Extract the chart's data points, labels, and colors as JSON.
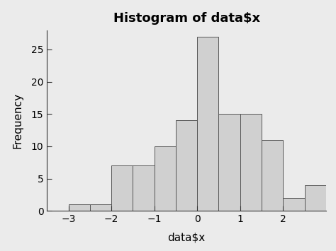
{
  "title": "Histogram of data$x",
  "xlabel": "data$x",
  "ylabel": "Frequency",
  "background_color": "#ebebeb",
  "plot_bg_color": "#ebebeb",
  "bar_color": "#d0d0d0",
  "bar_edge_color": "#555555",
  "bar_left_edges": [
    -3.0,
    -2.5,
    -2.0,
    -1.5,
    -1.0,
    -0.5,
    0.0,
    0.5,
    1.0,
    1.5,
    2.0,
    2.5
  ],
  "bar_heights": [
    1,
    1,
    7,
    7,
    10,
    14,
    27,
    15,
    15,
    11,
    2,
    4
  ],
  "bar_width": 0.5,
  "xlim": [
    -3.5,
    3.0
  ],
  "ylim": [
    0,
    28
  ],
  "xticks": [
    -3,
    -2,
    -1,
    0,
    1,
    2
  ],
  "yticks": [
    0,
    5,
    10,
    15,
    20,
    25
  ],
  "title_fontsize": 13,
  "label_fontsize": 11,
  "tick_fontsize": 10,
  "spine_color": "#333333"
}
